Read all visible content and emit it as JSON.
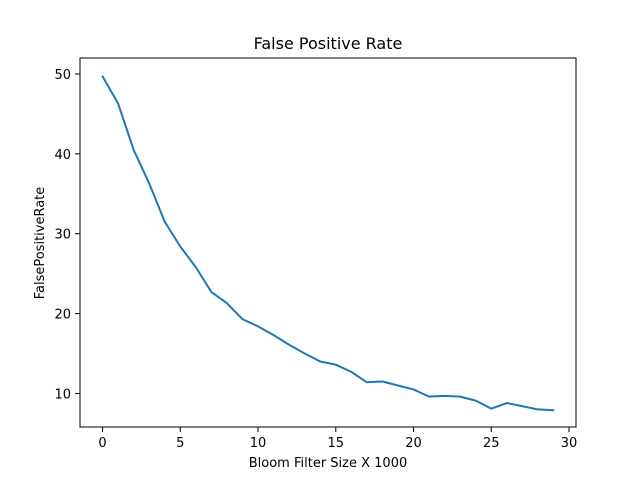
{
  "chart_data": {
    "type": "line",
    "title": "False Positive Rate",
    "xlabel": "Bloom Filter Size X 1000",
    "ylabel": "FalsePositiveRate",
    "xlim": [
      -1.45,
      30.45
    ],
    "ylim": [
      5.8,
      52.0
    ],
    "xticks": [
      0,
      5,
      10,
      15,
      20,
      25,
      30
    ],
    "yticks": [
      10,
      20,
      30,
      40,
      50
    ],
    "grid": false,
    "legend": "none",
    "colors": {
      "line": "#1f77b4"
    },
    "series": [
      {
        "x": [
          0,
          1,
          2,
          3,
          4,
          5,
          6,
          7,
          8,
          9,
          10,
          11,
          12,
          13,
          14,
          15,
          16,
          17,
          18,
          19,
          20,
          21,
          22,
          23,
          24,
          25,
          26,
          27,
          28,
          29
        ],
        "values": [
          49.7,
          46.3,
          40.5,
          36.3,
          31.5,
          28.4,
          25.8,
          22.7,
          21.3,
          19.3,
          18.4,
          17.3,
          16.1,
          15.0,
          14.0,
          13.6,
          12.7,
          11.4,
          11.5,
          11.0,
          10.5,
          9.6,
          9.7,
          9.6,
          9.1,
          8.1,
          8.8,
          8.4,
          8.0,
          7.9
        ]
      }
    ]
  }
}
